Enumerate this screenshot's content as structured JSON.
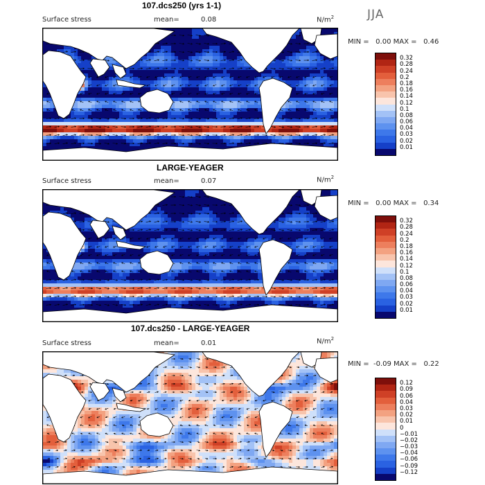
{
  "colors": {
    "palette": [
      "#08086e",
      "#1540c8",
      "#2a62e2",
      "#3e78ea",
      "#5e92ef",
      "#7fa8f2",
      "#a3c2f6",
      "#cfe0fa",
      "#fde6dc",
      "#f8c4ac",
      "#f3a281",
      "#ed7f5d",
      "#e35f3c",
      "#cf4026",
      "#b12514",
      "#7e0f0b"
    ],
    "land": "#ffffff",
    "coast": "#000000"
  },
  "season": "JJA",
  "chart_data": [
    {
      "type": "heatmap",
      "title": "107.dcs250 (yrs 1-1)",
      "field": "Surface stress",
      "mean_label": "mean=",
      "mean": "0.08",
      "units_base": "N/m",
      "units_exp": "2",
      "min_label": "MIN =",
      "min": "0.00",
      "max_label": "MAX =",
      "max": "0.46",
      "levels": [
        "0.01",
        "0.02",
        "0.03",
        "0.04",
        "0.06",
        "0.08",
        "0.1",
        "0.12",
        "0.14",
        "0.16",
        "0.18",
        "0.2",
        "0.24",
        "0.28",
        "0.32"
      ],
      "diverging": false
    },
    {
      "type": "heatmap",
      "title": "LARGE-YEAGER",
      "field": "Surface stress",
      "mean_label": "mean=",
      "mean": "0.07",
      "units_base": "N/m",
      "units_exp": "2",
      "min_label": "MIN =",
      "min": "0.00",
      "max_label": "MAX =",
      "max": "0.34",
      "levels": [
        "0.01",
        "0.02",
        "0.03",
        "0.04",
        "0.06",
        "0.08",
        "0.1",
        "0.12",
        "0.14",
        "0.16",
        "0.18",
        "0.2",
        "0.24",
        "0.28",
        "0.32"
      ],
      "diverging": false
    },
    {
      "type": "heatmap",
      "title": "107.dcs250 - LARGE-YEAGER",
      "field": "Surface stress",
      "mean_label": "mean=",
      "mean": "0.01",
      "units_base": "N/m",
      "units_exp": "2",
      "min_label": "MIN =",
      "min": "-0.09",
      "max_label": "MAX =",
      "max": "0.22",
      "levels": [
        "−0.12",
        "−0.09",
        "−0.06",
        "−0.04",
        "−0.03",
        "−0.02",
        "−0.01",
        "0",
        "0.01",
        "0.02",
        "0.03",
        "0.04",
        "0.06",
        "0.09",
        "0.12"
      ],
      "diverging": true
    }
  ]
}
